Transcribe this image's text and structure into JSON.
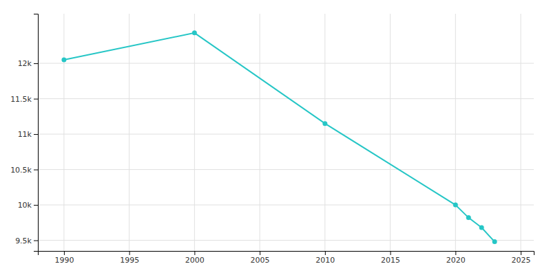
{
  "chart_data": {
    "type": "line",
    "x": [
      1990,
      2000,
      2010,
      2020,
      2021,
      2022,
      2023
    ],
    "values": [
      12050,
      12430,
      11150,
      10000,
      9820,
      9680,
      9480
    ],
    "color": "#26C6C6",
    "marker": "circle",
    "xlim": [
      1988,
      2026
    ],
    "ylim": [
      9350,
      12700
    ],
    "xticks": [
      1990,
      1995,
      2000,
      2005,
      2010,
      2015,
      2020,
      2025
    ],
    "yticks": [
      {
        "value": 9500,
        "label": "9.5k"
      },
      {
        "value": 10000,
        "label": "10k"
      },
      {
        "value": 10500,
        "label": "10.5k"
      },
      {
        "value": 11000,
        "label": "11k"
      },
      {
        "value": 11500,
        "label": "11.5k"
      },
      {
        "value": 12000,
        "label": "12k"
      }
    ],
    "grid": true
  }
}
